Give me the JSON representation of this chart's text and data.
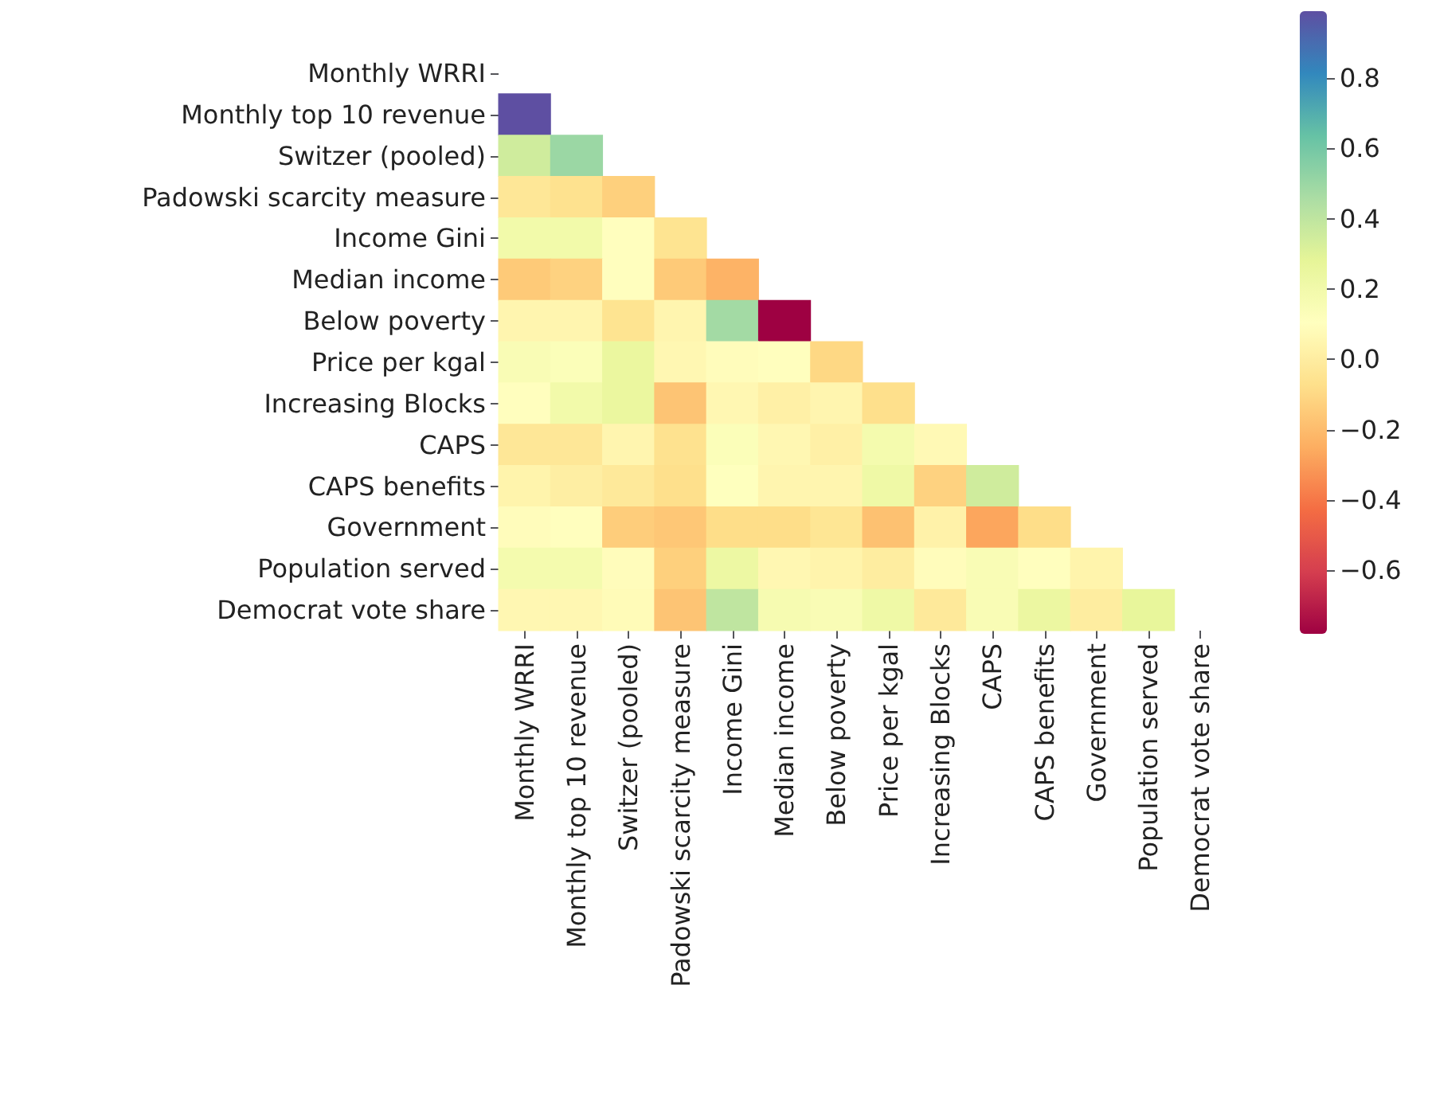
{
  "chart_data": {
    "type": "heatmap",
    "categories": [
      "Monthly WRRI",
      "Monthly top 10 revenue",
      "Switzer (pooled)",
      "Padowski scarcity measure",
      "Income Gini",
      "Median income",
      "Below poverty",
      "Price per kgal",
      "Increasing Blocks",
      "CAPS",
      "CAPS benefits",
      "Government",
      "Population served",
      "Democrat vote share"
    ],
    "y_categories": [
      "Monthly WRRI",
      "Monthly top 10 revenue",
      "Switzer (pooled)",
      "Padowski scarcity measure",
      "Income Gini",
      "Median income",
      "Below poverty",
      "Price per kgal",
      "Increasing Blocks",
      "CAPS",
      "CAPS benefits",
      "Government",
      "Population served",
      "Democrat vote share"
    ],
    "cells": [
      [
        null,
        null,
        null,
        null,
        null,
        null,
        null,
        null,
        null,
        null,
        null,
        null,
        null,
        null
      ],
      [
        0.99,
        null,
        null,
        null,
        null,
        null,
        null,
        null,
        null,
        null,
        null,
        null,
        null,
        null
      ],
      [
        0.35,
        0.5,
        null,
        null,
        null,
        null,
        null,
        null,
        null,
        null,
        null,
        null,
        null,
        null
      ],
      [
        -0.03,
        -0.06,
        -0.13,
        null,
        null,
        null,
        null,
        null,
        null,
        null,
        null,
        null,
        null,
        null
      ],
      [
        0.2,
        0.2,
        0.1,
        -0.05,
        null,
        null,
        null,
        null,
        null,
        null,
        null,
        null,
        null,
        null
      ],
      [
        -0.15,
        -0.12,
        0.1,
        -0.15,
        -0.23,
        null,
        null,
        null,
        null,
        null,
        null,
        null,
        null,
        null
      ],
      [
        0.05,
        0.05,
        -0.05,
        0.05,
        0.48,
        -0.78,
        null,
        null,
        null,
        null,
        null,
        null,
        null,
        null
      ],
      [
        0.15,
        0.13,
        0.25,
        0.06,
        0.09,
        0.1,
        -0.1,
        null,
        null,
        null,
        null,
        null,
        null,
        null
      ],
      [
        0.1,
        0.2,
        0.25,
        -0.17,
        0.06,
        0.02,
        0.05,
        -0.07,
        null,
        null,
        null,
        null,
        null,
        null
      ],
      [
        -0.03,
        -0.03,
        0.05,
        -0.06,
        0.13,
        0.06,
        0.02,
        0.18,
        0.07,
        null,
        null,
        null,
        null,
        null
      ],
      [
        0.04,
        0.01,
        -0.02,
        -0.07,
        0.11,
        0.05,
        0.05,
        0.22,
        -0.12,
        0.35,
        null,
        null,
        null,
        null
      ],
      [
        0.09,
        0.1,
        -0.14,
        -0.16,
        -0.08,
        -0.08,
        -0.04,
        -0.18,
        0.03,
        -0.27,
        -0.08,
        null,
        null,
        null
      ],
      [
        0.18,
        0.18,
        0.09,
        -0.13,
        0.23,
        0.06,
        0.04,
        0.0,
        0.09,
        0.15,
        0.1,
        0.04,
        null,
        null
      ],
      [
        0.06,
        0.06,
        0.08,
        -0.17,
        0.4,
        0.17,
        0.15,
        0.22,
        -0.02,
        0.15,
        0.24,
        0.0,
        0.27,
        null
      ]
    ],
    "clim": [
      -0.78,
      0.99
    ],
    "cticks": [
      {
        "value": -0.6,
        "label": "−0.6"
      },
      {
        "value": -0.4,
        "label": "−0.4"
      },
      {
        "value": -0.2,
        "label": "−0.2"
      },
      {
        "value": 0.0,
        "label": "0.0"
      },
      {
        "value": 0.2,
        "label": "0.2"
      },
      {
        "value": 0.4,
        "label": "0.4"
      },
      {
        "value": 0.6,
        "label": "0.6"
      },
      {
        "value": 0.8,
        "label": "0.8"
      }
    ],
    "colors": [
      "#9e0142",
      "#d53e4f",
      "#f46d43",
      "#fdae61",
      "#fee08b",
      "#ffffbf",
      "#e6f598",
      "#abdda4",
      "#66c2a5",
      "#3288bd",
      "#5e4fa2"
    ]
  }
}
